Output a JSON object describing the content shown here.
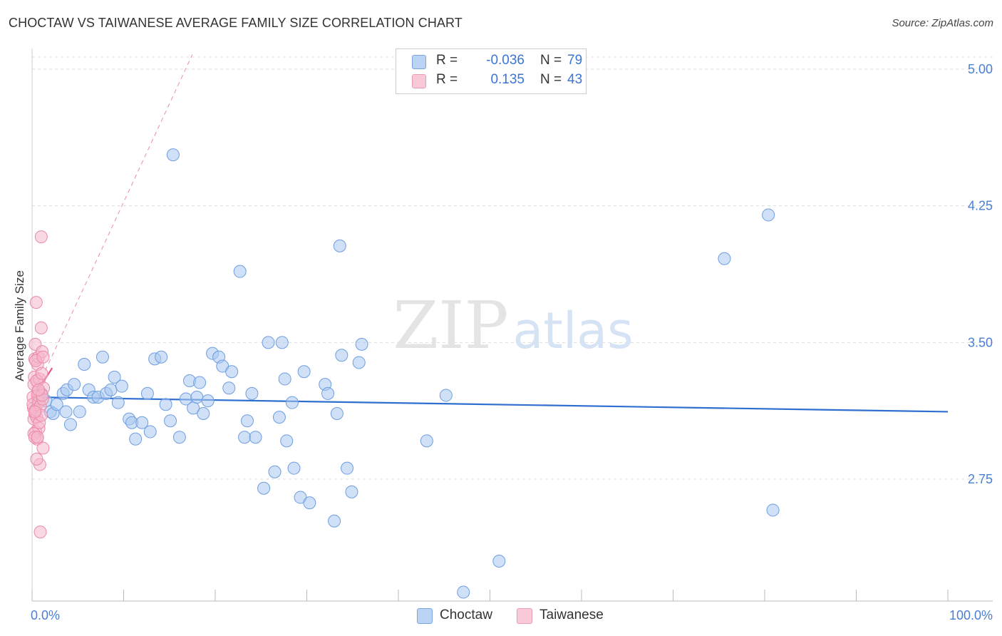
{
  "title": "CHOCTAW VS TAIWANESE AVERAGE FAMILY SIZE CORRELATION CHART",
  "source": "Source: ZipAtlas.com",
  "watermark": "ZIPatlas",
  "colors": {
    "choctaw_fill": "#a9c8f0",
    "choctaw_stroke": "#6e9de0",
    "choctaw_line": "#2f6fcf",
    "taiwanese_fill": "#f6b8cc",
    "taiwanese_stroke": "#e98aa8",
    "taiwanese_line": "#e25c8a",
    "tick_text": "#4a7fd4",
    "grid": "#dcdcdc"
  },
  "legend": {
    "rows": [
      {
        "r_label": "R =",
        "r_value": "-0.036",
        "n_label": "N =",
        "n_value": "79"
      },
      {
        "r_label": "R =",
        "r_value": "0.135",
        "n_label": "N =",
        "n_value": "43"
      }
    ]
  },
  "bottom_legend": [
    "Choctaw",
    "Taiwanese"
  ],
  "chart_data": {
    "type": "scatter",
    "title": "CHOCTAW VS TAIWANESE AVERAGE FAMILY SIZE CORRELATION CHART",
    "xlabel": "",
    "ylabel": "Average Family Size",
    "xlim": [
      0,
      100
    ],
    "ylim": [
      2.0,
      5.1
    ],
    "x_tick_labels": [
      "0.0%",
      "100.0%"
    ],
    "y_ticks": [
      2.75,
      3.5,
      4.25,
      5.0
    ],
    "y_tick_labels": [
      "2.75",
      "3.50",
      "4.25",
      "5.00"
    ],
    "grid": true,
    "series": [
      {
        "name": "Choctaw",
        "r": -0.036,
        "n": 79,
        "trend": {
          "x": [
            0,
            100
          ],
          "y": [
            3.2,
            3.12
          ]
        },
        "points": [
          [
            1.0,
            3.22
          ],
          [
            1.5,
            3.18
          ],
          [
            2.0,
            3.12
          ],
          [
            2.3,
            3.11
          ],
          [
            2.7,
            3.16
          ],
          [
            3.4,
            3.22
          ],
          [
            3.7,
            3.12
          ],
          [
            3.8,
            3.24
          ],
          [
            4.2,
            3.05
          ],
          [
            4.6,
            3.27
          ],
          [
            5.2,
            3.12
          ],
          [
            5.7,
            3.38
          ],
          [
            6.2,
            3.24
          ],
          [
            6.7,
            3.2
          ],
          [
            7.2,
            3.2
          ],
          [
            7.7,
            3.42
          ],
          [
            8.1,
            3.22
          ],
          [
            8.6,
            3.24
          ],
          [
            9.0,
            3.31
          ],
          [
            9.4,
            3.17
          ],
          [
            9.8,
            3.26
          ],
          [
            10.6,
            3.08
          ],
          [
            10.9,
            3.06
          ],
          [
            11.3,
            2.97
          ],
          [
            12.0,
            3.06
          ],
          [
            12.6,
            3.22
          ],
          [
            12.9,
            3.01
          ],
          [
            13.4,
            3.41
          ],
          [
            14.1,
            3.42
          ],
          [
            14.6,
            3.16
          ],
          [
            15.1,
            3.07
          ],
          [
            15.4,
            4.53
          ],
          [
            16.1,
            2.98
          ],
          [
            16.8,
            3.19
          ],
          [
            17.2,
            3.29
          ],
          [
            17.6,
            3.14
          ],
          [
            18.0,
            3.2
          ],
          [
            18.3,
            3.28
          ],
          [
            18.7,
            3.11
          ],
          [
            19.2,
            3.18
          ],
          [
            19.7,
            3.44
          ],
          [
            20.4,
            3.42
          ],
          [
            20.8,
            3.37
          ],
          [
            21.5,
            3.25
          ],
          [
            21.8,
            3.34
          ],
          [
            22.7,
            3.89
          ],
          [
            23.2,
            2.98
          ],
          [
            23.5,
            3.07
          ],
          [
            24.0,
            3.22
          ],
          [
            24.4,
            2.98
          ],
          [
            25.3,
            2.7
          ],
          [
            25.8,
            3.5
          ],
          [
            26.5,
            2.79
          ],
          [
            27.0,
            3.09
          ],
          [
            27.3,
            3.5
          ],
          [
            27.6,
            3.3
          ],
          [
            27.8,
            2.96
          ],
          [
            28.4,
            3.17
          ],
          [
            28.6,
            2.81
          ],
          [
            29.3,
            2.65
          ],
          [
            29.7,
            3.34
          ],
          [
            30.3,
            2.62
          ],
          [
            32.0,
            3.27
          ],
          [
            32.3,
            3.22
          ],
          [
            33.0,
            2.52
          ],
          [
            33.3,
            3.11
          ],
          [
            33.6,
            4.03
          ],
          [
            33.8,
            3.43
          ],
          [
            34.4,
            2.81
          ],
          [
            34.9,
            2.68
          ],
          [
            35.7,
            3.39
          ],
          [
            36.0,
            3.49
          ],
          [
            43.1,
            2.96
          ],
          [
            45.2,
            3.21
          ],
          [
            47.1,
            2.13
          ],
          [
            51.0,
            2.3
          ],
          [
            75.6,
            3.96
          ],
          [
            80.4,
            4.2
          ],
          [
            80.9,
            2.58
          ]
        ]
      },
      {
        "name": "Taiwanese",
        "r": 0.135,
        "n": 43,
        "trend": {
          "x": [
            0,
            2.2
          ],
          "y": [
            3.19,
            3.36
          ]
        },
        "trend_extended": {
          "x": [
            0,
            17.5
          ],
          "y": [
            3.19,
            5.08
          ]
        },
        "points": [
          [
            0.1,
            3.2
          ],
          [
            0.15,
            3.14
          ],
          [
            0.2,
            3.08
          ],
          [
            0.25,
            3.31
          ],
          [
            0.3,
            3.41
          ],
          [
            0.35,
            3.49
          ],
          [
            0.4,
            3.01
          ],
          [
            0.1,
            3.16
          ],
          [
            0.2,
            3.27
          ],
          [
            0.3,
            3.11
          ],
          [
            0.45,
            3.72
          ],
          [
            0.5,
            3.09
          ],
          [
            0.55,
            2.97
          ],
          [
            0.6,
            3.38
          ],
          [
            0.65,
            3.23
          ],
          [
            0.7,
            3.17
          ],
          [
            0.75,
            3.03
          ],
          [
            0.8,
            3.3
          ],
          [
            0.85,
            2.83
          ],
          [
            0.9,
            2.46
          ],
          [
            0.2,
            3.0
          ],
          [
            0.3,
            2.98
          ],
          [
            0.4,
            3.13
          ],
          [
            0.5,
            3.29
          ],
          [
            0.6,
            3.21
          ],
          [
            0.7,
            3.42
          ],
          [
            0.8,
            3.06
          ],
          [
            0.9,
            3.15
          ],
          [
            1.0,
            3.58
          ],
          [
            1.05,
            3.33
          ],
          [
            1.1,
            3.45
          ],
          [
            1.15,
            3.19
          ],
          [
            1.2,
            2.92
          ],
          [
            1.25,
            3.25
          ],
          [
            1.0,
            3.1
          ],
          [
            0.5,
            2.86
          ],
          [
            1.1,
            3.21
          ],
          [
            1.0,
            4.08
          ],
          [
            0.3,
            3.12
          ],
          [
            0.4,
            3.4
          ],
          [
            0.6,
            2.98
          ],
          [
            1.2,
            3.42
          ],
          [
            0.7,
            3.24
          ]
        ]
      }
    ]
  }
}
